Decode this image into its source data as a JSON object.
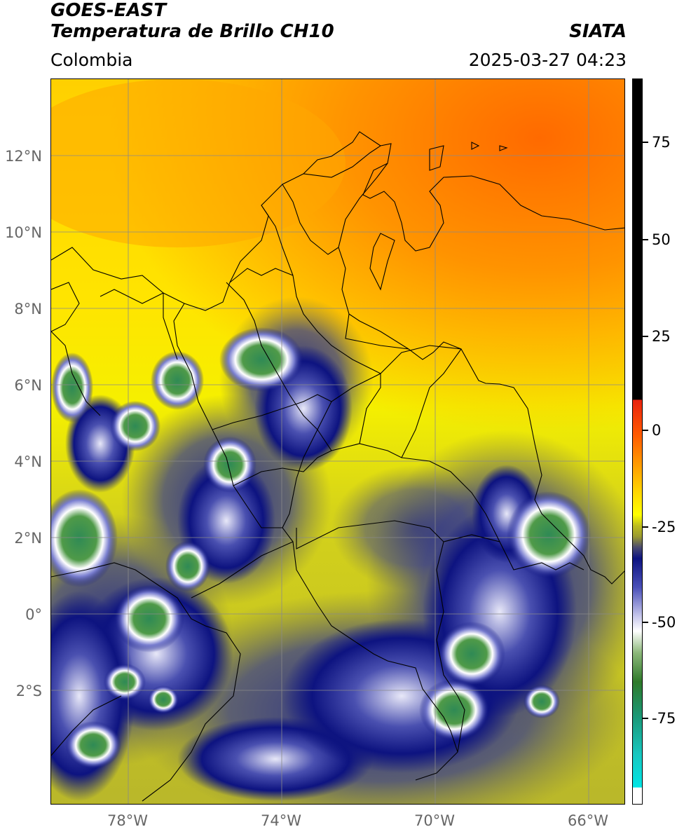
{
  "header": {
    "satellite": "GOES-EAST",
    "product": "Temperatura de Brillo CH10",
    "source": "SIATA",
    "region": "Colombia",
    "datetime": "2025-03-27 04:23"
  },
  "map": {
    "lat_labels": [
      "12°N",
      "10°N",
      "8°N",
      "6°N",
      "4°N",
      "2°N",
      "0°",
      "2°S"
    ],
    "lon_labels": [
      "78°W",
      "74°W",
      "70°W",
      "66°W"
    ],
    "lat_range": [
      -4.8,
      14.2
    ],
    "lon_range": [
      -80,
      -65
    ],
    "grid": true,
    "gridline_color": "#8a8a8a"
  },
  "colorbar": {
    "tick_labels": [
      "75",
      "50",
      "25",
      "0",
      "-25",
      "-50",
      "-75"
    ],
    "range": [
      -95,
      90
    ],
    "colors": {
      "warm_black": "#000000",
      "red": "#e8230f",
      "orange": "#ff8c00",
      "yellow": "#ffff00",
      "olive": "#bdbd1e",
      "navy": "#0d1380",
      "white": "#ffffff",
      "green": "#3d8c3a",
      "teal": "#1ab39a",
      "cyan": "#00e5e5"
    }
  }
}
